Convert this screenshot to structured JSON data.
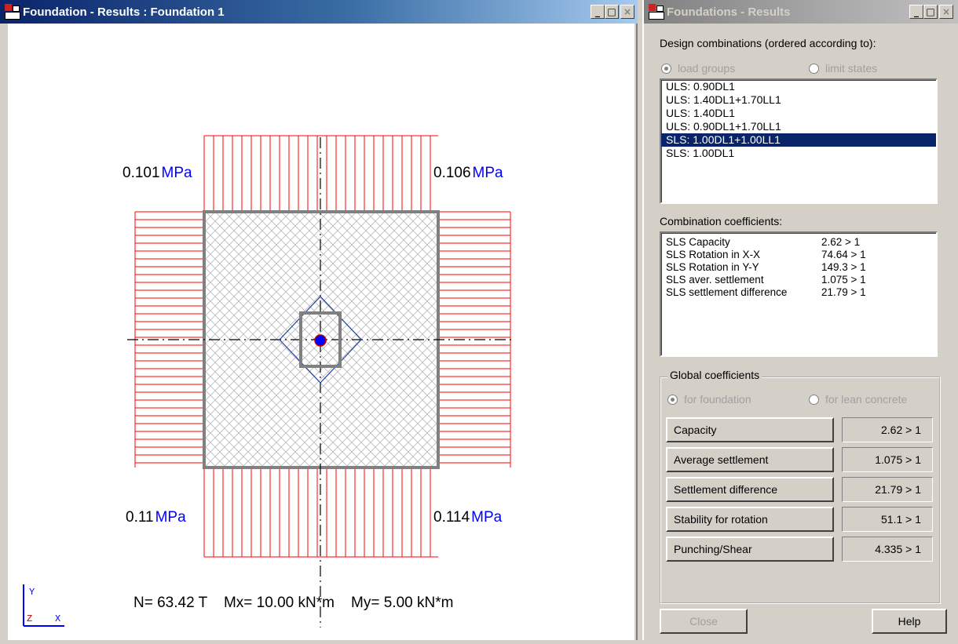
{
  "left_window": {
    "title": "Foundation - Results : Foundation 1",
    "controls": {
      "minimize": "_",
      "maximize": "□",
      "close": "×"
    },
    "pressure_labels": {
      "top_left": {
        "value": "0.101",
        "unit": "MPa"
      },
      "top_right": {
        "value": "0.106",
        "unit": "MPa"
      },
      "bottom_left": {
        "value": "0.11",
        "unit": "MPa"
      },
      "bottom_right": {
        "value": "0.114",
        "unit": "MPa"
      }
    },
    "forces_text": "N= 63.42 T    Mx= 10.00 kN*m    My= 5.00 kN*m",
    "axes": {
      "y": "Y",
      "z": "Z",
      "x": "X"
    },
    "colors": {
      "diagram": "#ff0000",
      "unit": "#0000ff",
      "footing": "#7f7f7f",
      "column_axes": "#2040a0",
      "centroid": "#0000ff"
    }
  },
  "right_window": {
    "title": "Foundations - Results",
    "controls": {
      "minimize": "_",
      "maximize": "□",
      "close": "×"
    },
    "order_label": "Design combinations (ordered according to):",
    "order_options": [
      "load groups",
      "limit states"
    ],
    "combinations": [
      "ULS: 0.90DL1",
      "ULS: 1.40DL1+1.70LL1",
      "ULS: 1.40DL1",
      "ULS: 0.90DL1+1.70LL1",
      "SLS: 1.00DL1+1.00LL1",
      "SLS: 1.00DL1"
    ],
    "selected_combination": "SLS: 1.00DL1+1.00LL1",
    "coef_label": "Combination coefficients:",
    "coefficients": [
      {
        "name": "SLS Capacity",
        "value": "2.62 > 1"
      },
      {
        "name": "SLS Rotation in X-X",
        "value": "74.64 > 1"
      },
      {
        "name": "SLS Rotation in Y-Y",
        "value": "149.3 > 1"
      },
      {
        "name": "SLS aver. settlement",
        "value": "1.075 > 1"
      },
      {
        "name": "SLS settlement difference",
        "value": "21.79 > 1"
      }
    ],
    "global_label": "Global coefficients",
    "global_options": [
      "for foundation",
      "for lean concrete"
    ],
    "global_rows": [
      {
        "label": "Capacity",
        "value": "2.62 > 1"
      },
      {
        "label": "Average settlement",
        "value": "1.075 > 1"
      },
      {
        "label": "Settlement difference",
        "value": "21.79 > 1"
      },
      {
        "label": "Stability for rotation",
        "value": "51.1 > 1"
      },
      {
        "label": "Punching/Shear",
        "value": "4.335 > 1"
      }
    ],
    "buttons": {
      "close": "Close",
      "help": "Help"
    }
  }
}
